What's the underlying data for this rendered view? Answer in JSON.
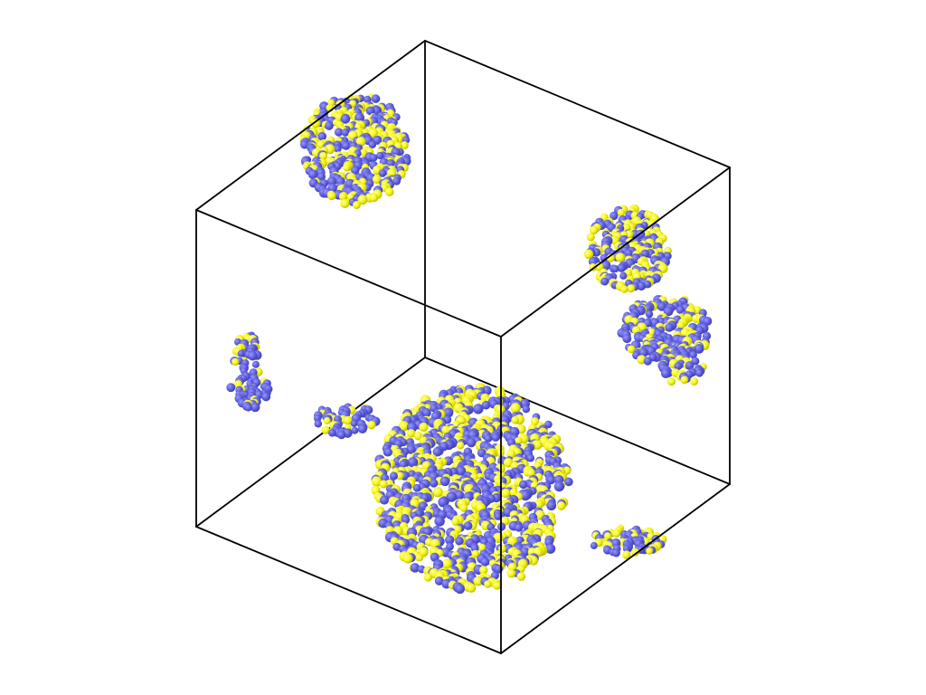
{
  "scene": {
    "background": "#ffffff",
    "box_color": "#000000",
    "species": [
      {
        "id": "species-a",
        "color": "#5f5fe0",
        "shade": "#3c3cae"
      },
      {
        "id": "species-b",
        "color": "#f5f516",
        "shade": "#b8b800"
      }
    ],
    "clusters": [
      {
        "id": "cluster-large-center",
        "species_b_fraction": 0.45
      },
      {
        "id": "cluster-top-left",
        "species_b_fraction": 0.45
      },
      {
        "id": "cluster-right-elongated",
        "species_b_fraction": 0.4
      },
      {
        "id": "cluster-left-small",
        "species_b_fraction": 0.3
      },
      {
        "id": "cluster-center-left-small",
        "species_b_fraction": 0.35
      },
      {
        "id": "cluster-bottom-right-small",
        "species_b_fraction": 0.4
      }
    ]
  }
}
